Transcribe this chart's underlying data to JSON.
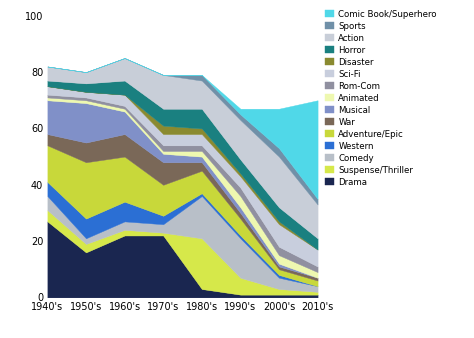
{
  "decades": [
    "1940's",
    "1950's",
    "1960's",
    "1970's",
    "1980's",
    "1990's",
    "2000's",
    "2010's"
  ],
  "genres": [
    "Drama",
    "Suspense/Thriller",
    "Comedy",
    "Western",
    "Adventure/Epic",
    "War",
    "Musical",
    "Animated",
    "Rom-Com",
    "Sci-Fi",
    "Disaster",
    "Horror",
    "Action",
    "Sports",
    "Comic Book/Superhero"
  ],
  "colors": [
    "#1a2650",
    "#d6e84a",
    "#b8bfc8",
    "#2b6fd4",
    "#c8d83a",
    "#7a6858",
    "#8090c8",
    "#eef8b0",
    "#9090a0",
    "#c8cedd",
    "#8a8a30",
    "#1a8080",
    "#c8ced8",
    "#7090a8",
    "#50d8e8"
  ],
  "data": {
    "Drama": [
      27,
      16,
      22,
      22,
      3,
      1,
      1,
      1
    ],
    "Suspense/Thriller": [
      4,
      3,
      2,
      1,
      18,
      6,
      2,
      1
    ],
    "Comedy": [
      5,
      2,
      3,
      3,
      15,
      14,
      4,
      2
    ],
    "Western": [
      5,
      7,
      7,
      3,
      1,
      1,
      1,
      0
    ],
    "Adventure/Epic": [
      13,
      20,
      16,
      11,
      8,
      6,
      2,
      2
    ],
    "War": [
      4,
      7,
      8,
      8,
      3,
      2,
      1,
      1
    ],
    "Musical": [
      12,
      14,
      8,
      3,
      2,
      2,
      1,
      0
    ],
    "Animated": [
      1,
      1,
      1,
      1,
      2,
      4,
      3,
      2
    ],
    "Rom-Com": [
      1,
      1,
      1,
      2,
      2,
      3,
      3,
      2
    ],
    "Sci-Fi": [
      3,
      2,
      4,
      4,
      4,
      4,
      8,
      6
    ],
    "Disaster": [
      0,
      0,
      0,
      3,
      2,
      1,
      1,
      0
    ],
    "Horror": [
      2,
      3,
      5,
      6,
      7,
      5,
      5,
      4
    ],
    "Action": [
      5,
      4,
      8,
      12,
      10,
      14,
      18,
      12
    ],
    "Sports": [
      0,
      0,
      0,
      0,
      2,
      2,
      3,
      2
    ],
    "Comic Book/Superhero": [
      0,
      0,
      0,
      0,
      0,
      2,
      14,
      35
    ]
  },
  "ylim": [
    0,
    102
  ],
  "yticks": [
    0,
    20,
    40,
    60,
    80,
    100
  ]
}
